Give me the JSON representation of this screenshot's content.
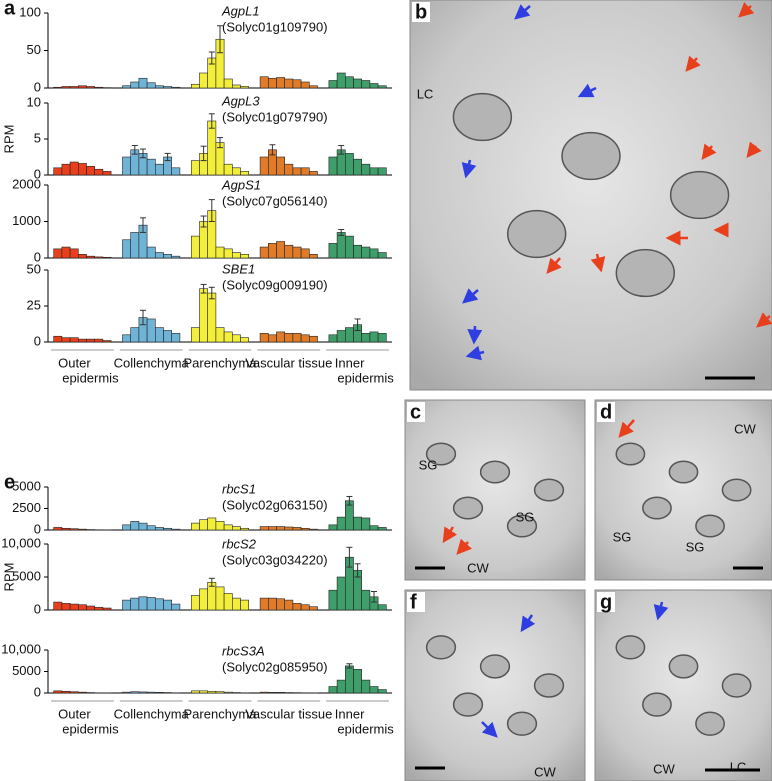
{
  "chart_data": [
    {
      "type": "bar",
      "panel": "a",
      "title": "AgpL1",
      "subtitle": "(Solyc01g109790)",
      "ylim": [
        0,
        100
      ],
      "yticks": [
        0,
        50,
        100
      ],
      "series": [
        {
          "color": "#e8401c",
          "values": [
            1,
            2,
            2,
            3,
            2,
            1,
            0.5
          ]
        },
        {
          "color": "#6fb3d6",
          "values": [
            3,
            8,
            13,
            7,
            3,
            2,
            1
          ]
        },
        {
          "color": "#f2ee3a",
          "values": [
            5,
            20,
            40,
            65,
            12,
            4,
            2
          ],
          "errors": [
            null,
            null,
            8,
            18,
            null,
            null,
            null
          ]
        },
        {
          "color": "#e07b29",
          "values": [
            15,
            13,
            14,
            12,
            11,
            8,
            3
          ]
        },
        {
          "color": "#3f9e6a",
          "values": [
            10,
            20,
            15,
            12,
            10,
            6,
            3
          ]
        }
      ]
    },
    {
      "type": "bar",
      "title": "AgpL3",
      "subtitle": "(Solyc01g079790)",
      "ylabel": "RPM",
      "ylim": [
        0,
        10
      ],
      "yticks": [
        0,
        5,
        10
      ],
      "series": [
        {
          "color": "#e8401c",
          "values": [
            1,
            1.5,
            1.8,
            1.6,
            1.2,
            0.8,
            0.5
          ]
        },
        {
          "color": "#6fb3d6",
          "values": [
            2.5,
            3.5,
            3,
            2.2,
            1.5,
            2.5,
            1
          ],
          "errors": [
            null,
            0.6,
            0.6,
            null,
            null,
            0.5,
            null
          ]
        },
        {
          "color": "#f2ee3a",
          "values": [
            2,
            3,
            7.5,
            4.5,
            1.5,
            1,
            0.5
          ],
          "errors": [
            null,
            1,
            1,
            0.7,
            null,
            null,
            null
          ]
        },
        {
          "color": "#e07b29",
          "values": [
            2.5,
            3.5,
            2.5,
            1.5,
            1,
            1,
            0.5
          ],
          "errors": [
            null,
            0.7,
            null,
            null,
            null,
            null,
            null
          ]
        },
        {
          "color": "#3f9e6a",
          "values": [
            2.5,
            3.5,
            3,
            2.2,
            1.5,
            1,
            1
          ],
          "errors": [
            null,
            0.6,
            null,
            null,
            null,
            null,
            null
          ]
        }
      ]
    },
    {
      "type": "bar",
      "title": "AgpS1",
      "subtitle": "(Solyc07g056140)",
      "ylim": [
        0,
        2000
      ],
      "yticks": [
        0,
        1000,
        2000
      ],
      "series": [
        {
          "color": "#e8401c",
          "values": [
            250,
            300,
            250,
            100,
            50,
            30,
            20
          ]
        },
        {
          "color": "#6fb3d6",
          "values": [
            500,
            700,
            900,
            300,
            150,
            100,
            50
          ],
          "errors": [
            null,
            null,
            200,
            null,
            null,
            null,
            null
          ]
        },
        {
          "color": "#f2ee3a",
          "values": [
            600,
            1000,
            1300,
            300,
            250,
            150,
            100
          ],
          "errors": [
            null,
            150,
            300,
            null,
            null,
            null,
            null
          ]
        },
        {
          "color": "#e07b29",
          "values": [
            300,
            400,
            450,
            350,
            300,
            250,
            100
          ]
        },
        {
          "color": "#3f9e6a",
          "values": [
            400,
            700,
            600,
            350,
            300,
            250,
            150
          ],
          "errors": [
            null,
            80,
            null,
            null,
            null,
            null,
            null
          ]
        }
      ]
    },
    {
      "type": "bar",
      "title": "SBE1",
      "subtitle": "(Solyc09g009190)",
      "ylim": [
        0,
        50
      ],
      "yticks": [
        0,
        25,
        50
      ],
      "series": [
        {
          "color": "#e8401c",
          "values": [
            4,
            3,
            3,
            2,
            2,
            2,
            1
          ]
        },
        {
          "color": "#6fb3d6",
          "values": [
            5,
            10,
            17,
            16,
            10,
            8,
            6
          ],
          "errors": [
            null,
            null,
            5,
            null,
            null,
            null,
            null
          ]
        },
        {
          "color": "#f2ee3a",
          "values": [
            10,
            37,
            34,
            10,
            7,
            5,
            3
          ],
          "errors": [
            null,
            3,
            4,
            null,
            null,
            null,
            null
          ]
        },
        {
          "color": "#e07b29",
          "values": [
            6,
            5,
            7,
            6,
            6,
            5,
            4
          ]
        },
        {
          "color": "#3f9e6a",
          "values": [
            5,
            8,
            10,
            12,
            6,
            7,
            6
          ],
          "errors": [
            null,
            null,
            null,
            4,
            null,
            null,
            null
          ]
        }
      ],
      "group_labels": [
        [
          "Outer",
          "epidermis"
        ],
        [
          "Collenchyma"
        ],
        [
          "Parenchyma"
        ],
        [
          "Vascular tissue"
        ],
        [
          "Inner",
          "epidermis"
        ]
      ]
    },
    {
      "type": "bar",
      "panel": "e",
      "title": "rbcS1",
      "subtitle": "(Solyc02g063150)",
      "ylim": [
        0,
        5000
      ],
      "yticks": [
        0,
        2500,
        5000
      ],
      "series": [
        {
          "color": "#e8401c",
          "values": [
            300,
            200,
            150,
            100,
            50,
            30,
            20
          ]
        },
        {
          "color": "#6fb3d6",
          "values": [
            600,
            1000,
            800,
            500,
            300,
            200,
            100
          ]
        },
        {
          "color": "#f2ee3a",
          "values": [
            800,
            1200,
            1400,
            1000,
            600,
            400,
            200
          ]
        },
        {
          "color": "#e07b29",
          "values": [
            400,
            400,
            400,
            350,
            300,
            200,
            100
          ]
        },
        {
          "color": "#3f9e6a",
          "values": [
            600,
            1500,
            3400,
            1500,
            1400,
            500,
            300
          ],
          "errors": [
            null,
            null,
            500,
            null,
            null,
            null,
            null
          ]
        }
      ]
    },
    {
      "type": "bar",
      "title": "rbcS2",
      "subtitle": "(Solyc03g034220)",
      "ylabel": "RPM",
      "ylim": [
        0,
        10000
      ],
      "yticks": [
        0,
        5000,
        {
          "value": 10000,
          "label": "10,000"
        }
      ],
      "series": [
        {
          "color": "#e8401c",
          "values": [
            1200,
            1000,
            900,
            800,
            600,
            400,
            300
          ]
        },
        {
          "color": "#6fb3d6",
          "values": [
            1500,
            1800,
            2000,
            1900,
            1700,
            1500,
            900
          ]
        },
        {
          "color": "#f2ee3a",
          "values": [
            2200,
            3200,
            4200,
            3500,
            2500,
            1800,
            1500
          ],
          "errors": [
            null,
            null,
            600,
            null,
            null,
            null,
            null
          ]
        },
        {
          "color": "#e07b29",
          "values": [
            1800,
            1800,
            1700,
            1500,
            1000,
            800,
            500
          ]
        },
        {
          "color": "#3f9e6a",
          "values": [
            3000,
            5000,
            8000,
            6000,
            3000,
            2000,
            800
          ],
          "errors": [
            null,
            null,
            1500,
            1000,
            null,
            800,
            null
          ]
        }
      ]
    },
    {
      "type": "bar",
      "title": "rbcS3A",
      "subtitle": "(Solyc02g085950)",
      "ylim": [
        0,
        10000
      ],
      "yticks": [
        0,
        5000,
        {
          "value": 10000,
          "label": "10,000"
        }
      ],
      "series": [
        {
          "color": "#e8401c",
          "values": [
            500,
            400,
            300,
            200,
            100,
            50,
            30
          ]
        },
        {
          "color": "#6fb3d6",
          "values": [
            200,
            300,
            250,
            200,
            150,
            100,
            50
          ]
        },
        {
          "color": "#f2ee3a",
          "values": [
            500,
            500,
            400,
            300,
            200,
            100,
            50
          ]
        },
        {
          "color": "#e07b29",
          "values": [
            200,
            150,
            150,
            100,
            80,
            50,
            30
          ]
        },
        {
          "color": "#3f9e6a",
          "values": [
            1500,
            3000,
            6300,
            5500,
            3000,
            1500,
            800
          ],
          "errors": [
            null,
            null,
            500,
            null,
            null,
            null,
            null
          ]
        }
      ],
      "group_labels": [
        [
          "Outer",
          "epidermis"
        ],
        [
          "Collenchyma"
        ],
        [
          "Parenchyma"
        ],
        [
          "Vascular tissue"
        ],
        [
          "Inner",
          "epidermis"
        ]
      ]
    }
  ],
  "micrographs": [
    {
      "label": "b",
      "annotations": [
        "LC"
      ]
    },
    {
      "label": "c",
      "annotations": [
        "SG",
        "SG",
        "CW"
      ]
    },
    {
      "label": "d",
      "annotations": [
        "CW",
        "SG",
        "SG"
      ]
    },
    {
      "label": "f",
      "annotations": [
        "CW"
      ]
    },
    {
      "label": "g",
      "annotations": [
        "CW",
        "LC"
      ]
    }
  ]
}
